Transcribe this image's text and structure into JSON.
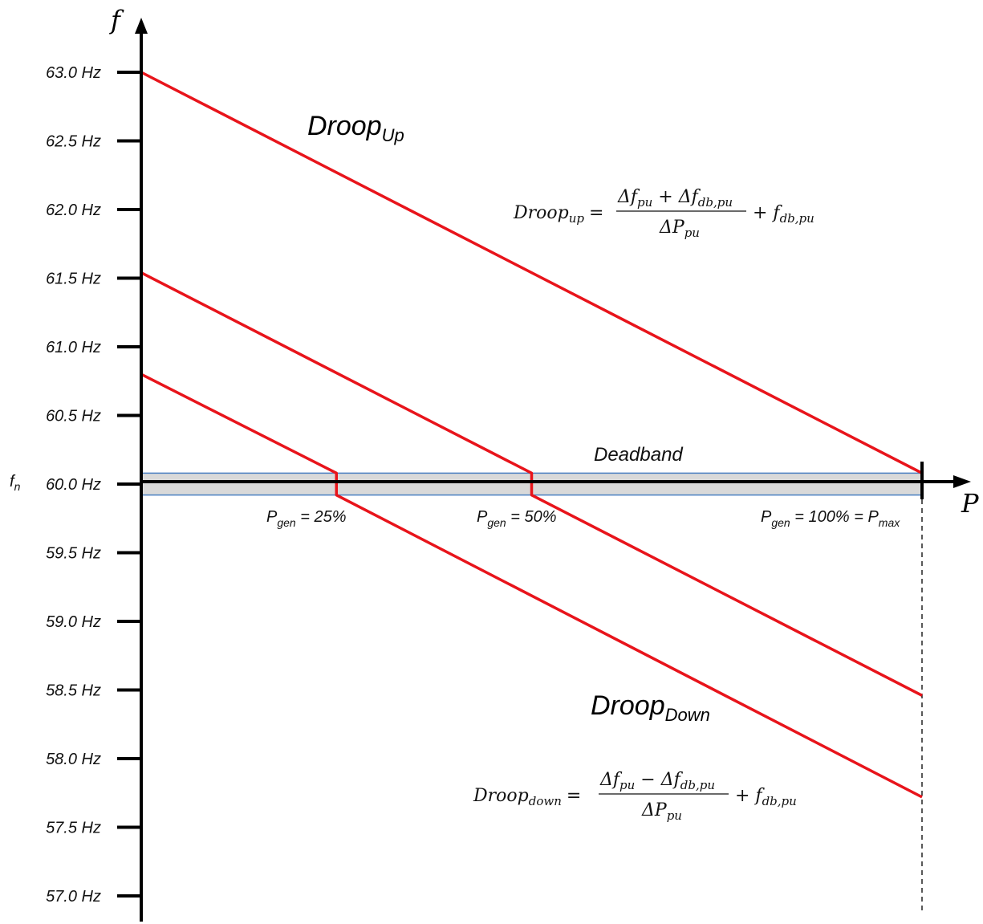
{
  "axes": {
    "y_letter": "f",
    "x_letter": "P",
    "fn_label": "f",
    "fn_sub": "n"
  },
  "y_ticks": [
    "63.0 Hz",
    "62.5 Hz",
    "62.0 Hz",
    "61.5 Hz",
    "61.0 Hz",
    "60.5 Hz",
    "60.0 Hz",
    "59.5 Hz",
    "59.0 Hz",
    "58.5 Hz",
    "58.0 Hz",
    "57.5 Hz",
    "57.0 Hz"
  ],
  "y_values": [
    63.0,
    62.5,
    62.0,
    61.5,
    61.0,
    60.5,
    60.0,
    59.5,
    59.0,
    58.5,
    58.0,
    57.5,
    57.0
  ],
  "deadband": {
    "label": "Deadband",
    "upper_hz": 60.08,
    "lower_hz": 59.92
  },
  "p_labels": [
    {
      "main": "P",
      "sub": "gen",
      "rest": " = 25%",
      "tail": "",
      "tail_sub": "",
      "p": 25
    },
    {
      "main": "P",
      "sub": "gen",
      "rest": " = 50%",
      "tail": "",
      "tail_sub": "",
      "p": 50
    },
    {
      "main": "P",
      "sub": "gen",
      "rest": " = 100% = ",
      "tail": "P",
      "tail_sub": "max",
      "p": 100
    }
  ],
  "droop_up": {
    "label": "Droop",
    "sub": "Up",
    "equation": {
      "lhs": "Droop",
      "lhs_sub": "up",
      "eq": "=",
      "numerator": "Δf",
      "num_sub1": "pu",
      "num_op": " + Δf",
      "num_sub2": "db,pu",
      "denominator": "ΔP",
      "den_sub": "pu",
      "plus": "+ f",
      "plus_sub": "db,pu"
    }
  },
  "droop_down": {
    "label": "Droop",
    "sub": "Down",
    "equation": {
      "lhs": "Droop",
      "lhs_sub": "down",
      "eq": "=",
      "numerator": "Δf",
      "num_sub1": "pu",
      "num_op": " − Δf",
      "num_sub2": "db,pu",
      "denominator": "ΔP",
      "den_sub": "pu",
      "plus": "+ f",
      "plus_sub": "db,pu"
    }
  },
  "curves": [
    {
      "name": "",
      "points": [
        [
          0,
          63.0
        ],
        [
          100,
          60.08
        ]
      ]
    },
    {
      "name": "",
      "points": [
        [
          0,
          61.54
        ],
        [
          50,
          60.08
        ],
        [
          50,
          59.92
        ],
        [
          100,
          58.46
        ]
      ]
    },
    {
      "name": "",
      "points": [
        [
          0,
          60.8
        ],
        [
          25,
          60.08
        ],
        [
          25,
          59.92
        ],
        [
          100,
          57.72
        ]
      ]
    }
  ],
  "colors": {
    "curve": "#e8141b",
    "deadband_fill": "#d9d9d9",
    "deadband_edge": "#4a7fc1",
    "axis": "#000000"
  }
}
